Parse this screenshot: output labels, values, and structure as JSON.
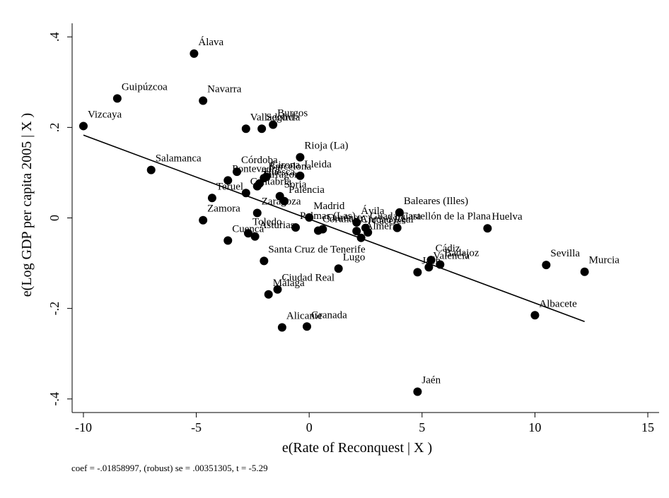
{
  "chart_data": {
    "type": "scatter",
    "xlabel": "e(Rate of Reconquest | X )",
    "ylabel": "e(Log GDP per capita 2005 | X )",
    "note": "coef = -.01858997, (robust) se = .00351305, t = -5.29",
    "xlim": [
      -10.5,
      15.5
    ],
    "ylim": [
      -0.43,
      0.43
    ],
    "x_ticks": [
      -10,
      -5,
      0,
      5,
      10,
      15
    ],
    "x_tick_labels": [
      "-10",
      "-5",
      "0",
      "5",
      "10",
      "15"
    ],
    "y_ticks": [
      -0.4,
      -0.2,
      0,
      0.2,
      0.4
    ],
    "y_tick_labels": [
      "-.4",
      "-.2",
      "0",
      ".2",
      ".4"
    ],
    "grid": false,
    "fit_line": {
      "x": [
        -10,
        12.2
      ],
      "y": [
        0.183,
        -0.229
      ]
    },
    "points": [
      {
        "label": "Álava",
        "x": -5.1,
        "y": 0.363
      },
      {
        "label": "Guipúzcoa",
        "x": -8.5,
        "y": 0.264
      },
      {
        "label": "Navarra",
        "x": -4.7,
        "y": 0.259
      },
      {
        "label": "Vizcaya",
        "x": -10.0,
        "y": 0.203
      },
      {
        "label": "Valladolid",
        "x": -2.8,
        "y": 0.197
      },
      {
        "label": "Segovia",
        "x": -2.1,
        "y": 0.197
      },
      {
        "label": "Burgos",
        "x": -1.6,
        "y": 0.206
      },
      {
        "label": "Rioja (La)",
        "x": -0.4,
        "y": 0.134
      },
      {
        "label": "Salamanca",
        "x": -7.0,
        "y": 0.106
      },
      {
        "label": "Córdoba",
        "x": -3.2,
        "y": 0.102
      },
      {
        "label": "Girona",
        "x": -1.9,
        "y": 0.091
      },
      {
        "label": "Lleida",
        "x": -0.4,
        "y": 0.093
      },
      {
        "label": "Pontevedra",
        "x": -3.6,
        "y": 0.083
      },
      {
        "label": "Barcelona",
        "x": -2.0,
        "y": 0.088
      },
      {
        "label": "Tarragona",
        "x": -2.3,
        "y": 0.07
      },
      {
        "label": "Huesca",
        "x": -2.2,
        "y": 0.076
      },
      {
        "label": "Cantabria",
        "x": -2.8,
        "y": 0.055
      },
      {
        "label": "Soria",
        "x": -1.3,
        "y": 0.048
      },
      {
        "label": "Palencia",
        "x": -1.1,
        "y": 0.037
      },
      {
        "label": "Teruel",
        "x": -4.3,
        "y": 0.044
      },
      {
        "label": "Zaragoza",
        "x": -2.3,
        "y": 0.011
      },
      {
        "label": "Zamora",
        "x": -4.7,
        "y": -0.005
      },
      {
        "label": "Madrid",
        "x": 0.0,
        "y": 0.001
      },
      {
        "label": "Ourense",
        "x": 0.6,
        "y": -0.025
      },
      {
        "label": "Toledo",
        "x": -2.7,
        "y": -0.034
      },
      {
        "label": "Asturias",
        "x": -2.4,
        "y": -0.041
      },
      {
        "label": "Palmas (Las)",
        "x": -0.6,
        "y": -0.021
      },
      {
        "label": "Coruña (A)",
        "x": 0.4,
        "y": -0.028
      },
      {
        "label": "Cuenca",
        "x": -3.6,
        "y": -0.05
      },
      {
        "label": "Ávila",
        "x": 2.1,
        "y": -0.01
      },
      {
        "label": "Guadalajara",
        "x": 2.5,
        "y": -0.022
      },
      {
        "label": "Cáceres",
        "x": 2.6,
        "y": -0.032
      },
      {
        "label": "Ciudad Real",
        "x": 2.1,
        "y": -0.029
      },
      {
        "label": "Almería",
        "x": 2.3,
        "y": -0.044
      },
      {
        "label": "Castellón de la Plana",
        "x": 3.9,
        "y": -0.022
      },
      {
        "label": "Baleares (Illes)",
        "x": 4.0,
        "y": 0.012
      },
      {
        "label": "Huelva",
        "x": 7.9,
        "y": -0.023
      },
      {
        "label": "Santa Cruz de Tenerife",
        "x": -2.0,
        "y": -0.095
      },
      {
        "label": "Lugo",
        "x": 1.3,
        "y": -0.112
      },
      {
        "label": "Cádiz",
        "x": 5.4,
        "y": -0.093
      },
      {
        "label": "Badajoz",
        "x": 5.8,
        "y": -0.103
      },
      {
        "label": "Valencia",
        "x": 5.3,
        "y": -0.109
      },
      {
        "label": "Jaén",
        "x": 4.8,
        "y": -0.12
      },
      {
        "label": "Sevilla",
        "x": 10.5,
        "y": -0.104
      },
      {
        "label": "Murcia",
        "x": 12.2,
        "y": -0.119
      },
      {
        "label": "Ciudad Real",
        "x": -1.4,
        "y": -0.158
      },
      {
        "label": "Málaga",
        "x": -1.8,
        "y": -0.169
      },
      {
        "label": "Albacete",
        "x": 10.0,
        "y": -0.215
      },
      {
        "label": "Alicante",
        "x": -1.2,
        "y": -0.242
      },
      {
        "label": "Granada",
        "x": -0.1,
        "y": -0.24
      },
      {
        "label": "Jaén",
        "x": 4.8,
        "y": -0.384
      }
    ]
  }
}
